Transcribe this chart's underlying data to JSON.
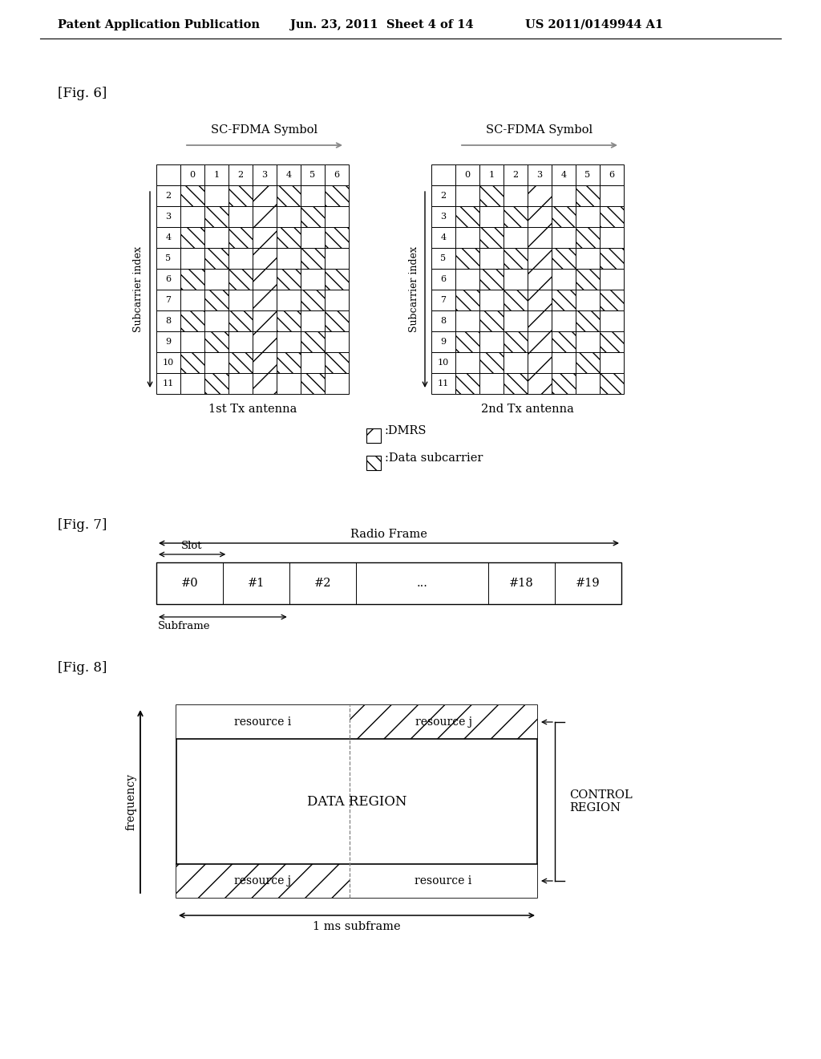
{
  "header_left": "Patent Application Publication",
  "header_mid": "Jun. 23, 2011  Sheet 4 of 14",
  "header_right": "US 2011/0149944 A1",
  "fig6_label": "[Fig. 6]",
  "fig7_label": "[Fig. 7]",
  "fig8_label": "[Fig. 8]",
  "grid_title": "SC-FDMA Symbol",
  "grid_cols": [
    "0",
    "1",
    "2",
    "3",
    "4",
    "5",
    "6"
  ],
  "grid_rows": [
    "2",
    "3",
    "4",
    "5",
    "6",
    "7",
    "8",
    "9",
    "10",
    "11"
  ],
  "ant1_label": "1st Tx antenna",
  "ant2_label": "2nd Tx antenna",
  "subcarrier_label": "Subcarrier index",
  "legend_dmrs": ":DMRS",
  "legend_data": ":Data subcarrier",
  "radio_frame_label": "Radio Frame",
  "slot_label": "Slot",
  "subframe_label": "Subframe",
  "slots": [
    "#0",
    "#1",
    "#2",
    "...",
    "#18",
    "#19"
  ],
  "resource_i_label": "resource i",
  "resource_j_label": "resource j",
  "data_region_label": "DATA REGION",
  "control_region_label": "CONTROL\nREGION",
  "freq_label": "frequency",
  "subframe_ms_label": "1 ms subframe",
  "bg_color": "#ffffff"
}
